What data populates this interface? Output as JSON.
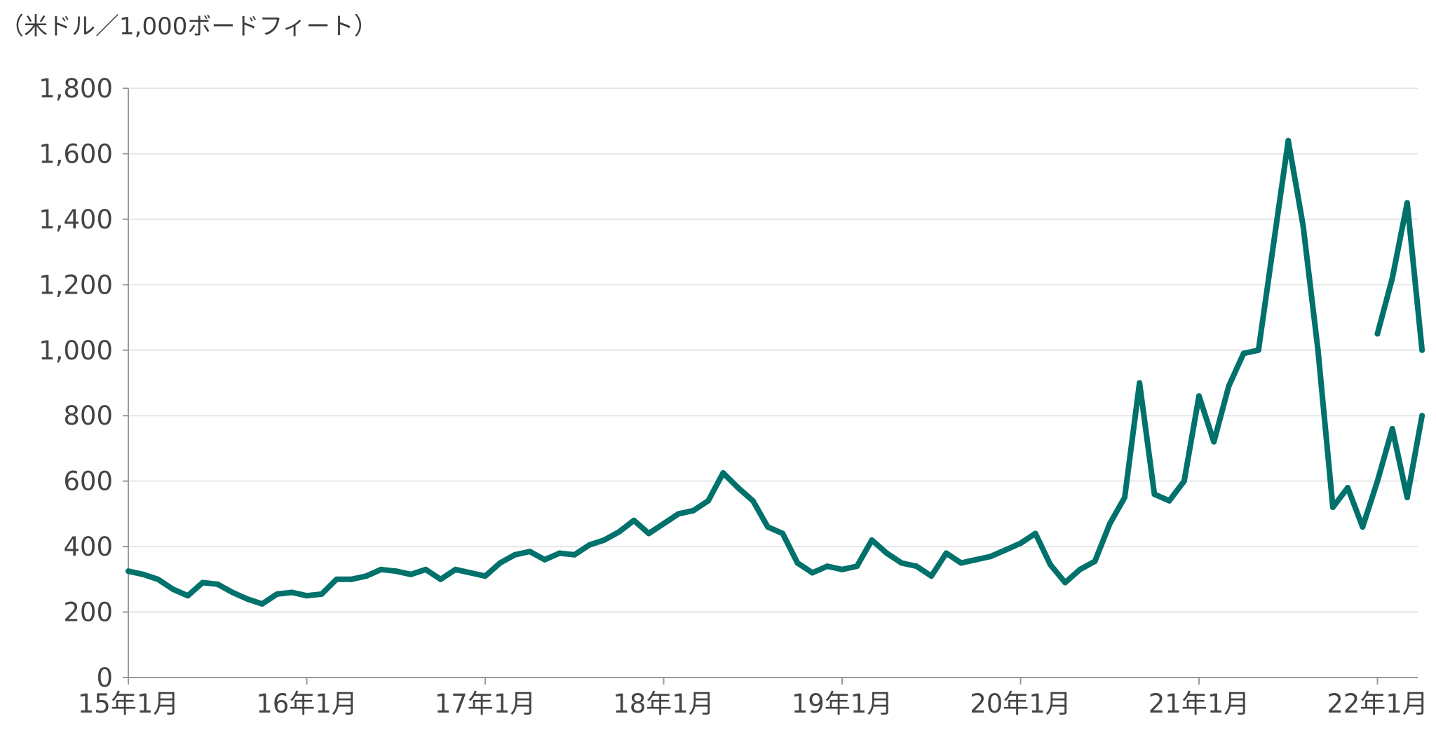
{
  "chart_data": {
    "type": "line",
    "unit_label": "（米ドル／1,000ボードフィート）",
    "xlabel": "",
    "ylabel": "",
    "ylim": [
      0,
      1800
    ],
    "yticks": [
      "0",
      "200",
      "400",
      "600",
      "800",
      "1,000",
      "1,200",
      "1,400",
      "1,600",
      "1,800"
    ],
    "xticks": [
      {
        "label": "15年1月",
        "x": "2015-01"
      },
      {
        "label": "16年1月",
        "x": "2016-01"
      },
      {
        "label": "17年1月",
        "x": "2017-01"
      },
      {
        "label": "18年1月",
        "x": "2018-01"
      },
      {
        "label": "19年1月",
        "x": "2019-01"
      },
      {
        "label": "20年1月",
        "x": "2020-01"
      },
      {
        "label": "21年1月",
        "x": "2021-01"
      },
      {
        "label": "22年1月",
        "x": "2022-01"
      }
    ],
    "xlim": [
      "2015-01",
      "2022-04"
    ],
    "grid": "horizontal",
    "line_color": "#00716b",
    "series": [
      {
        "x": [
          "2015-01",
          "2015-02",
          "2015-03",
          "2015-04",
          "2015-05",
          "2015-06",
          "2015-07",
          "2015-08",
          "2015-09",
          "2015-10",
          "2015-11",
          "2015-12",
          "2016-01",
          "2016-02",
          "2016-03",
          "2016-04",
          "2016-05",
          "2016-06",
          "2016-07",
          "2016-08",
          "2016-09",
          "2016-10",
          "2016-11",
          "2016-12",
          "2017-01",
          "2017-02",
          "2017-03",
          "2017-04",
          "2017-05",
          "2017-06",
          "2017-07",
          "2017-08",
          "2017-09",
          "2017-10",
          "2017-11",
          "2017-12",
          "2018-01",
          "2018-02",
          "2018-03",
          "2018-04",
          "2018-05",
          "2018-06",
          "2018-07",
          "2018-08",
          "2018-09",
          "2018-10",
          "2018-11",
          "2018-12",
          "2019-01",
          "2019-02",
          "2019-03",
          "2019-04",
          "2019-05",
          "2019-06",
          "2019-07",
          "2019-08",
          "2019-09",
          "2019-10",
          "2019-11",
          "2019-12",
          "2020-01",
          "2020-02",
          "2020-03",
          "2020-04",
          "2020-05",
          "2020-06",
          "2020-07",
          "2020-08",
          "2020-09",
          "2020-10",
          "2020-11",
          "2020-12",
          "2021-01",
          "2021-02",
          "2021-03",
          "2021-04",
          "2021-05",
          "2021-06",
          "2021-07",
          "2021-08",
          "2021-09",
          "2021-10",
          "2021-11",
          "2021-12",
          "2022-01",
          "2022-02",
          "2022-03",
          "2022-04"
        ],
        "values": [
          325,
          315,
          300,
          270,
          250,
          290,
          285,
          260,
          240,
          225,
          255,
          260,
          250,
          255,
          300,
          300,
          310,
          330,
          325,
          315,
          330,
          300,
          330,
          320,
          310,
          350,
          375,
          385,
          360,
          380,
          375,
          405,
          420,
          445,
          480,
          440,
          470,
          500,
          510,
          540,
          625,
          580,
          540,
          460,
          440,
          350,
          320,
          340,
          330,
          340,
          420,
          380,
          350,
          340,
          310,
          380,
          350,
          360,
          370,
          390,
          410,
          440,
          345,
          290,
          330,
          355,
          470,
          550,
          900,
          560,
          540,
          600,
          860,
          720,
          890,
          990,
          1000,
          1320,
          1640,
          1380,
          1000,
          520,
          580,
          460,
          600,
          760,
          550,
          800
        ]
      },
      {
        "x": [
          "2022-01",
          "2022-02",
          "2022-03",
          "2022-04"
        ],
        "values": [
          1050,
          1220,
          1450,
          1000
        ]
      }
    ]
  }
}
